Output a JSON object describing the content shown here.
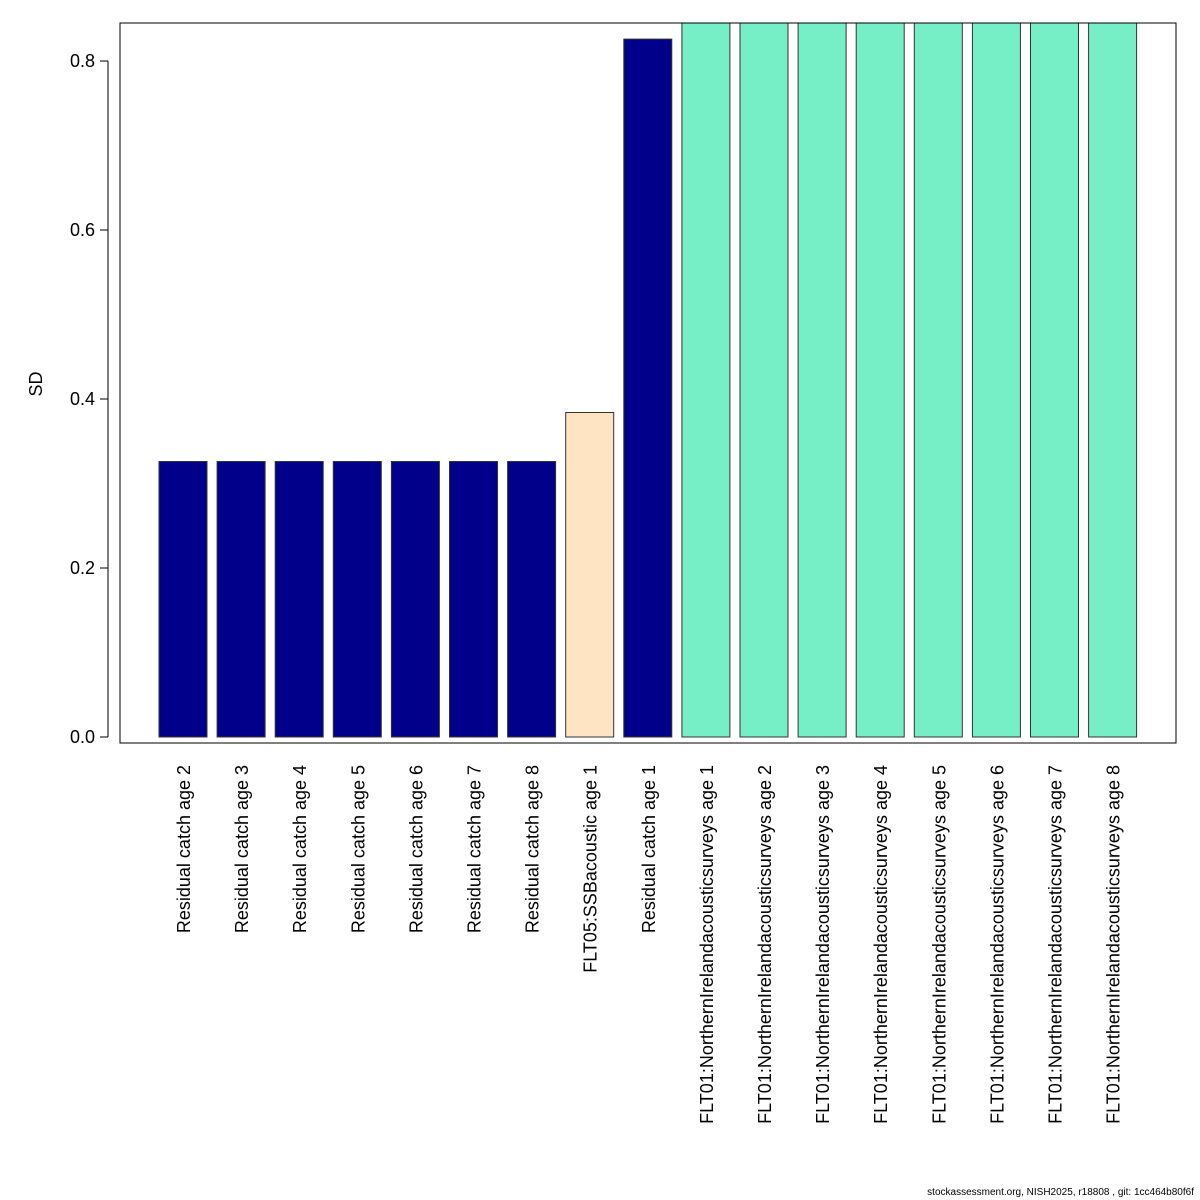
{
  "chart_data": {
    "type": "bar",
    "ylabel": "SD",
    "xlabel": "",
    "ylim": [
      0,
      0.845
    ],
    "yticks": [
      0.0,
      0.2,
      0.4,
      0.6,
      0.8
    ],
    "ytick_labels": [
      "0.0",
      "0.2",
      "0.4",
      "0.6",
      "0.8"
    ],
    "grid": false,
    "categories": [
      "Residual catch age 2",
      "Residual catch age 3",
      "Residual catch age 4",
      "Residual catch age 5",
      "Residual catch age 6",
      "Residual catch age 7",
      "Residual catch age 8",
      "FLT05:SSBacoustic age 1",
      "Residual catch age 1",
      "FLT01:NorthernIrelandacousticsurveys age 1",
      "FLT01:NorthernIrelandacousticsurveys age 2",
      "FLT01:NorthernIrelandacousticsurveys age 3",
      "FLT01:NorthernIrelandacousticsurveys age 4",
      "FLT01:NorthernIrelandacousticsurveys age 5",
      "FLT01:NorthernIrelandacousticsurveys age 6",
      "FLT01:NorthernIrelandacousticsurveys age 7",
      "FLT01:NorthernIrelandacousticsurveys age 8"
    ],
    "values": [
      0.326,
      0.326,
      0.326,
      0.326,
      0.326,
      0.326,
      0.326,
      0.384,
      0.826,
      0.845,
      0.845,
      0.845,
      0.845,
      0.845,
      0.845,
      0.845,
      0.845
    ],
    "colors": [
      "#00008B",
      "#00008B",
      "#00008B",
      "#00008B",
      "#00008B",
      "#00008B",
      "#00008B",
      "#FFE4C4",
      "#00008B",
      "#76EEC6",
      "#76EEC6",
      "#76EEC6",
      "#76EEC6",
      "#76EEC6",
      "#76EEC6",
      "#76EEC6",
      "#76EEC6"
    ]
  },
  "footer": "stockassessment.org, NISH2025, r18808 , git: 1cc464b80f6f"
}
